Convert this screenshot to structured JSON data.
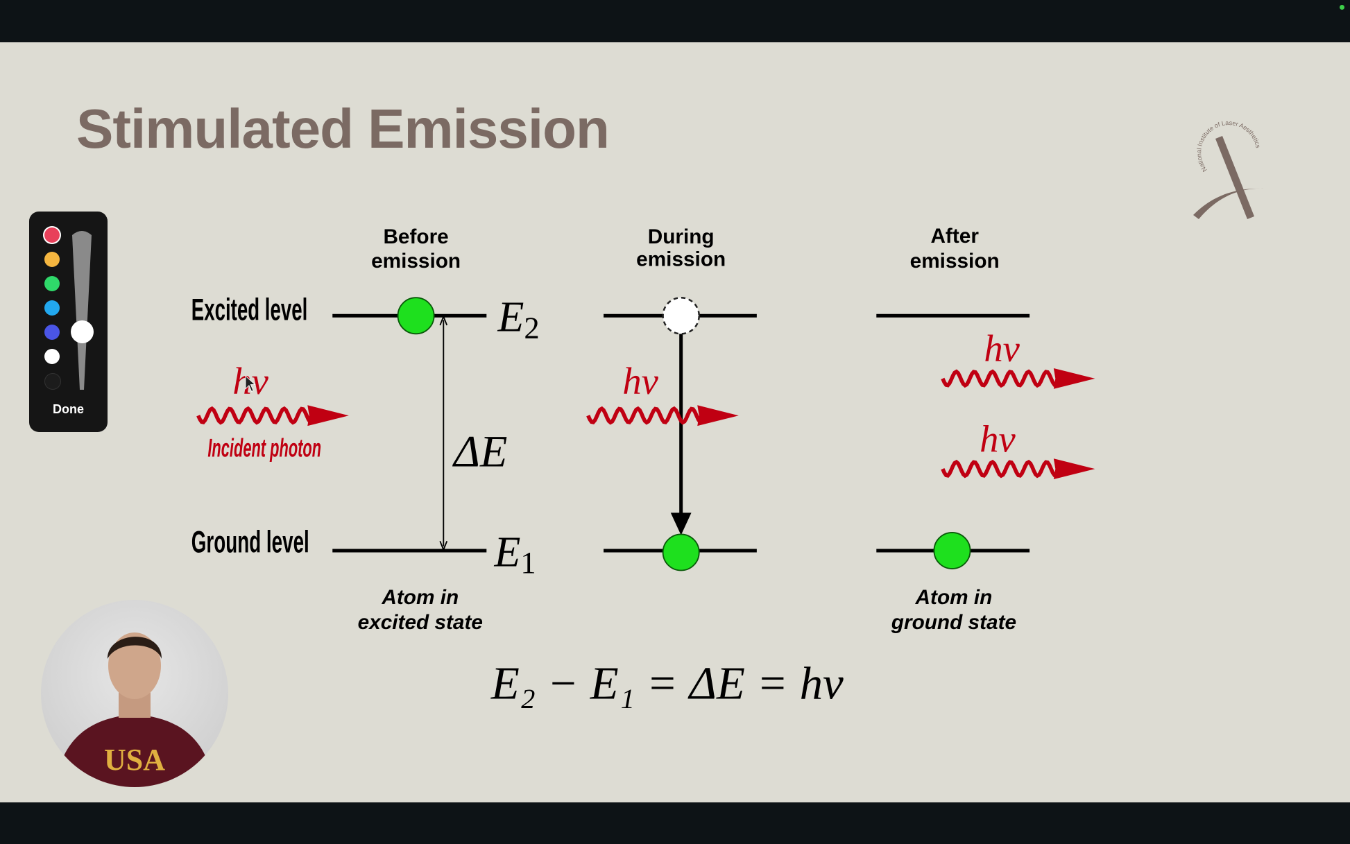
{
  "slide": {
    "title": "Stimulated Emission",
    "logo_text": "National Institute of Laser Aesthetics",
    "columns": [
      {
        "heading": [
          "Before",
          "emission"
        ],
        "caption": [
          "Atom in",
          "excited state"
        ]
      },
      {
        "heading": [
          "During",
          "emission"
        ],
        "caption": []
      },
      {
        "heading": [
          "After",
          "emission"
        ],
        "caption": [
          "Atom in",
          "ground state"
        ]
      }
    ],
    "excited_label": "Excited level",
    "ground_label": "Ground level",
    "e2": "E",
    "e2_sub": "2",
    "e1": "E",
    "e1_sub": "1",
    "delta_e": "ΔE",
    "photon_symbol": "hν",
    "incident_photon": "Incident photon",
    "equation": "E₂ − E₁ = ΔE = hν",
    "photon_color": "#c00012",
    "atom_color": "#1ee01e"
  },
  "annotation_toolbar": {
    "colors": [
      "#e8405a",
      "#f5b640",
      "#2fd96a",
      "#22a8ef",
      "#4a55e6",
      "#ffffff",
      "#1c1c1c"
    ],
    "selected_color": "#e8405a",
    "done_label": "Done"
  },
  "webcam": {
    "shirt_text": "USA"
  }
}
